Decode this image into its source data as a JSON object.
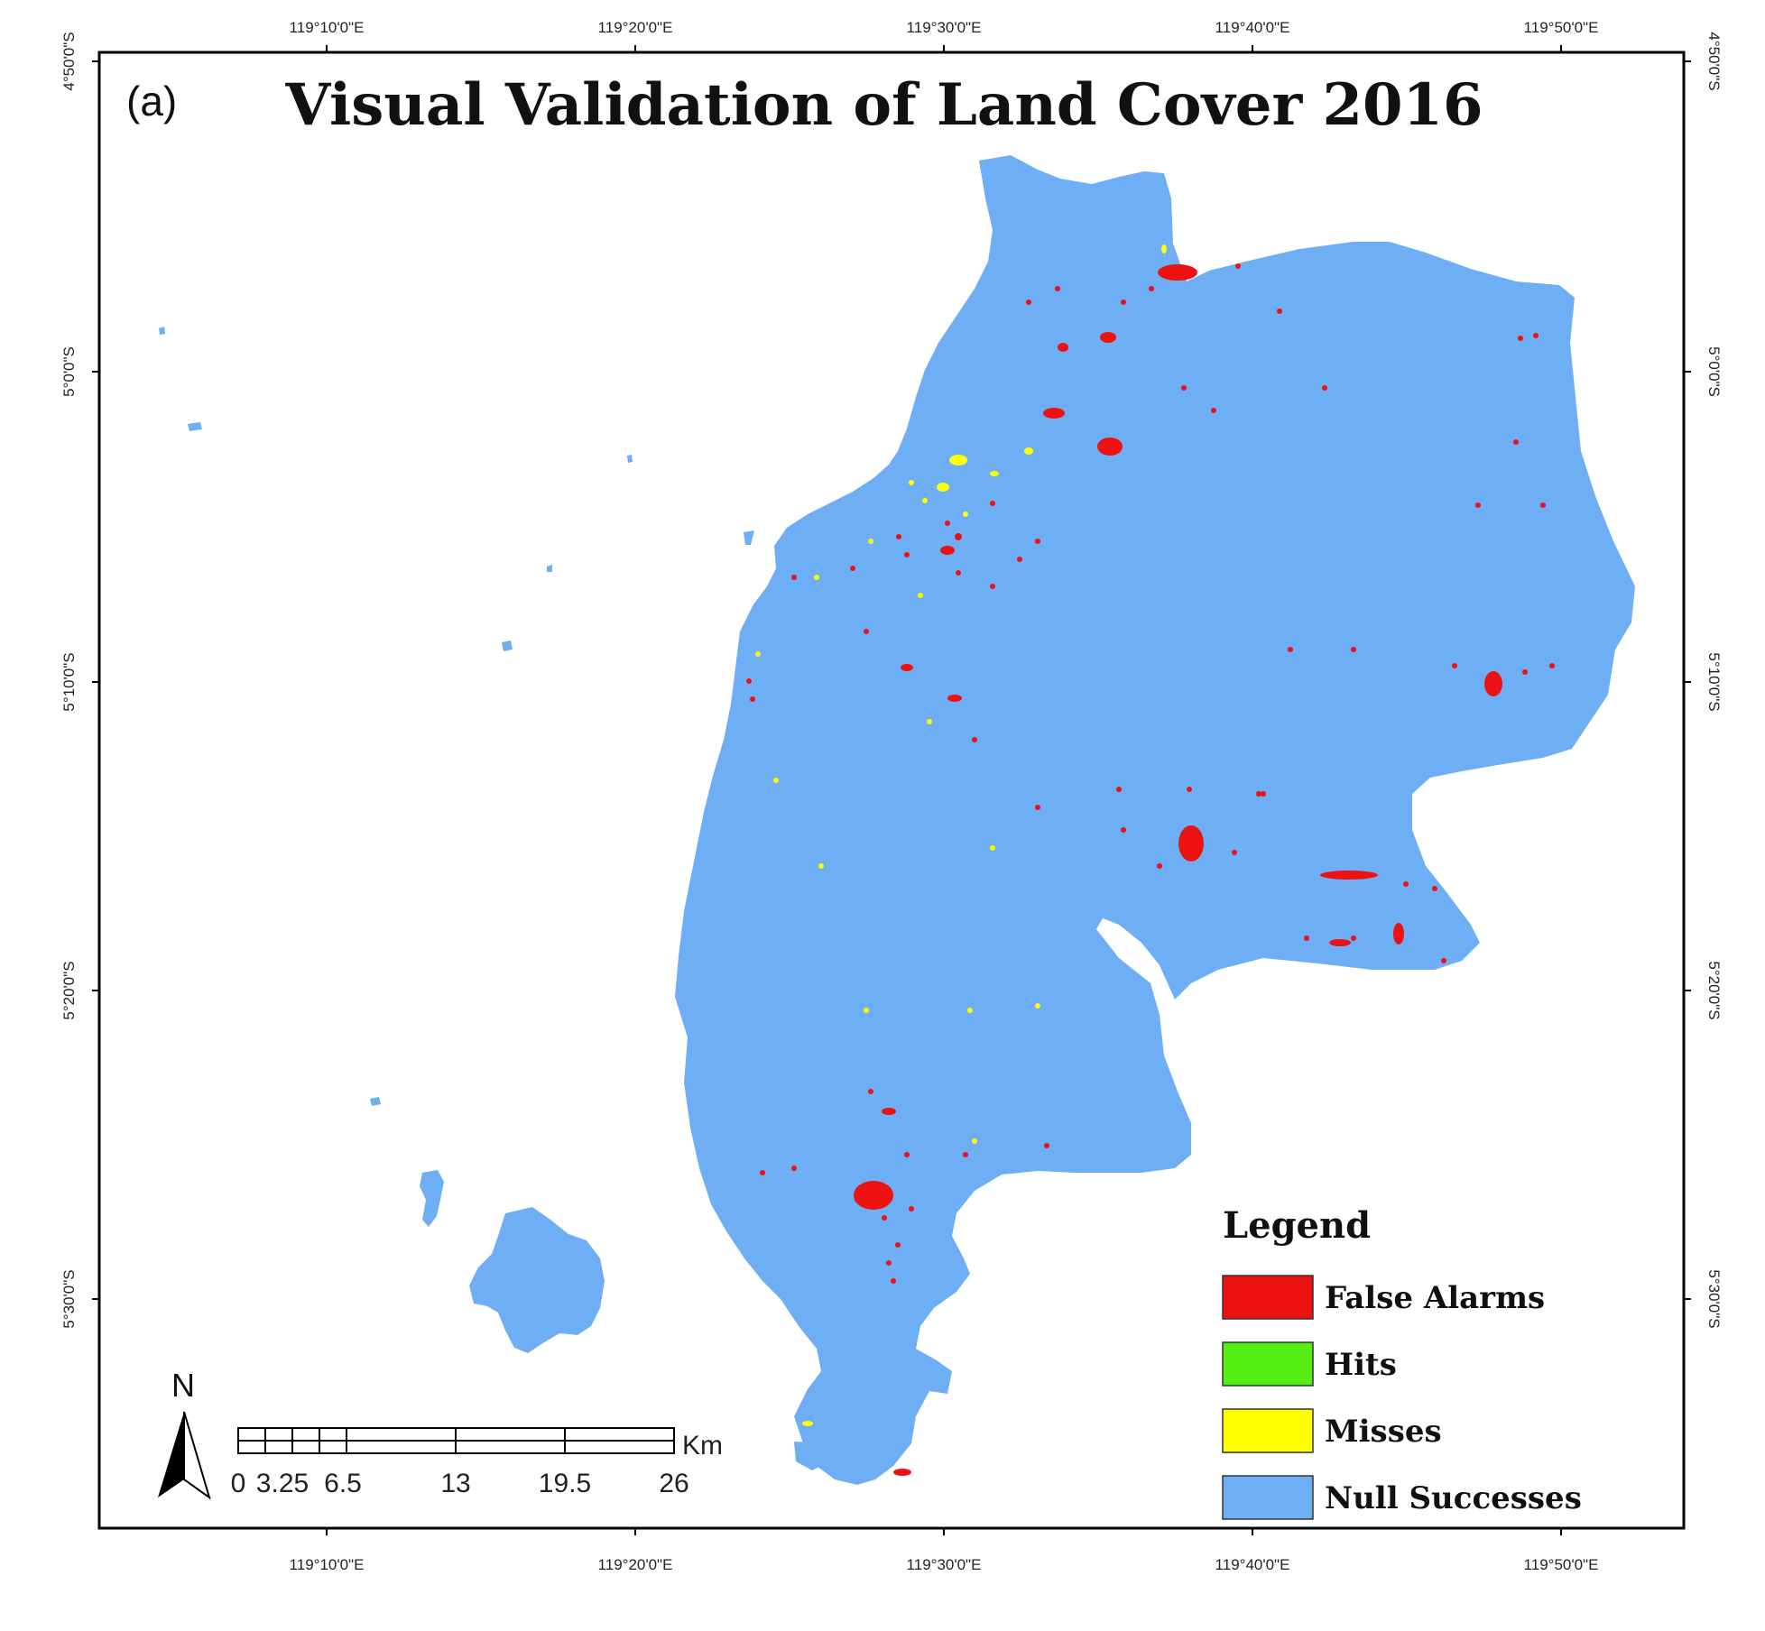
{
  "panel_label": "(a)",
  "title": "Visual Validation of Land Cover 2016",
  "axes": {
    "top": [
      "119°10'0\"E",
      "119°20'0\"E",
      "119°30'0\"E",
      "119°40'0\"E",
      "119°50'0\"E"
    ],
    "bottom": [
      "119°10'0\"E",
      "119°20'0\"E",
      "119°30'0\"E",
      "119°40'0\"E",
      "119°50'0\"E"
    ],
    "left": [
      "4°50'0\"S",
      "5°0'0\"S",
      "5°10'0\"S",
      "5°20'0\"S",
      "5°30'0\"S"
    ],
    "right": [
      "4°50'0\"S",
      "5°0'0\"S",
      "5°10'0\"S",
      "5°20'0\"S",
      "5°30'0\"S"
    ]
  },
  "legend": {
    "title": "Legend",
    "items": [
      {
        "label": "False Alarms",
        "color": "#ee1111"
      },
      {
        "label": "Hits",
        "color": "#55ee11"
      },
      {
        "label": "Misses",
        "color": "#ffff00"
      },
      {
        "label": "Null Successes",
        "color": "#6eaef5"
      }
    ]
  },
  "north_arrow": {
    "label": "N"
  },
  "scale_bar": {
    "unit": "Km",
    "ticks": [
      "0",
      "3.25",
      "6.5",
      "13",
      "19.5",
      "26"
    ]
  }
}
